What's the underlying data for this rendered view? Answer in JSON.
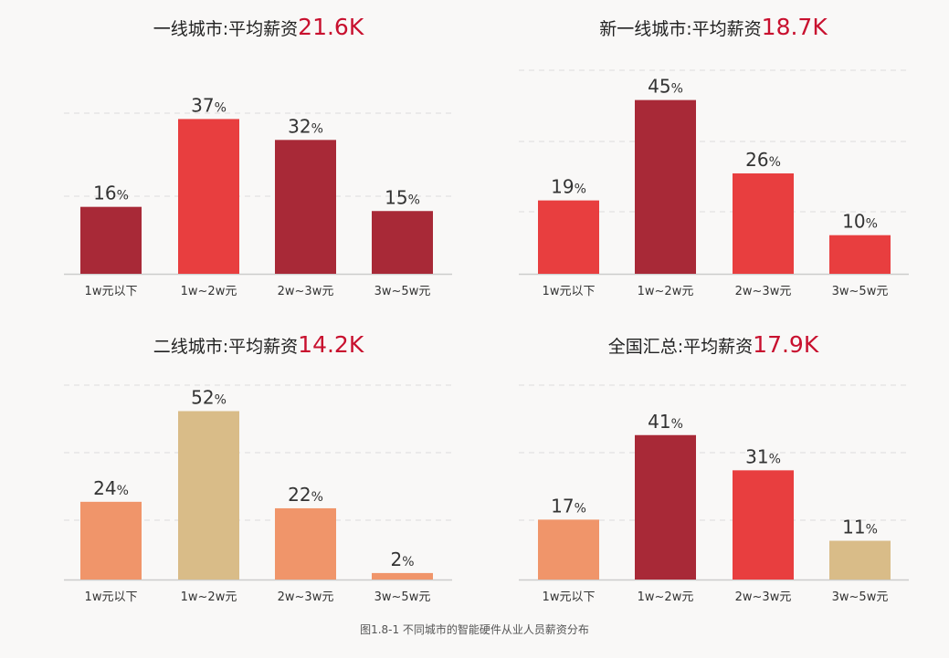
{
  "caption": "图1.8-1  不同城市的智能硬件从业人员薪资分布",
  "colors": {
    "dark_red": "#a82937",
    "red": "#e83e3f",
    "orange": "#f0956a",
    "tan": "#d9bc88",
    "highlight_text": "#c8102e",
    "title_text": "#222222",
    "value_text": "#333333",
    "grid": "#dddddd",
    "axis": "#cccccc"
  },
  "chart_data": [
    {
      "type": "bar",
      "title": "一线城市:平均薪资",
      "title_value": "21.6K",
      "categories": [
        "1w元以下",
        "1w~2w元",
        "2w~3w元",
        "3w~5w元"
      ],
      "values": [
        16,
        37,
        32,
        15
      ],
      "value_suffix": "%",
      "bar_colors": [
        "#a82937",
        "#e83e3f",
        "#a82937",
        "#a82937"
      ],
      "ylim": [
        0,
        48
      ],
      "grid": true
    },
    {
      "type": "bar",
      "title": "新一线城市:平均薪资",
      "title_value": "18.7K",
      "categories": [
        "1w元以下",
        "1w~2w元",
        "2w~3w元",
        "3w~5w元"
      ],
      "values": [
        19,
        45,
        26,
        10
      ],
      "value_suffix": "%",
      "bar_colors": [
        "#e83e3f",
        "#a82937",
        "#e83e3f",
        "#e83e3f"
      ],
      "ylim": [
        0,
        52
      ],
      "grid": true
    },
    {
      "type": "bar",
      "title": "二线城市:平均薪资",
      "title_value": "14.2K",
      "categories": [
        "1w元以下",
        "1w~2w元",
        "2w~3w元",
        "3w~5w元"
      ],
      "values": [
        24,
        52,
        22,
        2
      ],
      "value_suffix": "%",
      "bar_colors": [
        "#f0956a",
        "#d9bc88",
        "#f0956a",
        "#f0956a"
      ],
      "ylim": [
        0,
        62
      ],
      "grid": true
    },
    {
      "type": "bar",
      "title": "全国汇总:平均薪资",
      "title_value": "17.9K",
      "categories": [
        "1w元以下",
        "1w~2w元",
        "2w~3w元",
        "3w~5w元"
      ],
      "values": [
        17,
        41,
        31,
        11
      ],
      "value_suffix": "%",
      "bar_colors": [
        "#f0956a",
        "#a82937",
        "#e83e3f",
        "#d9bc88"
      ],
      "ylim": [
        0,
        57
      ],
      "grid": true
    }
  ]
}
